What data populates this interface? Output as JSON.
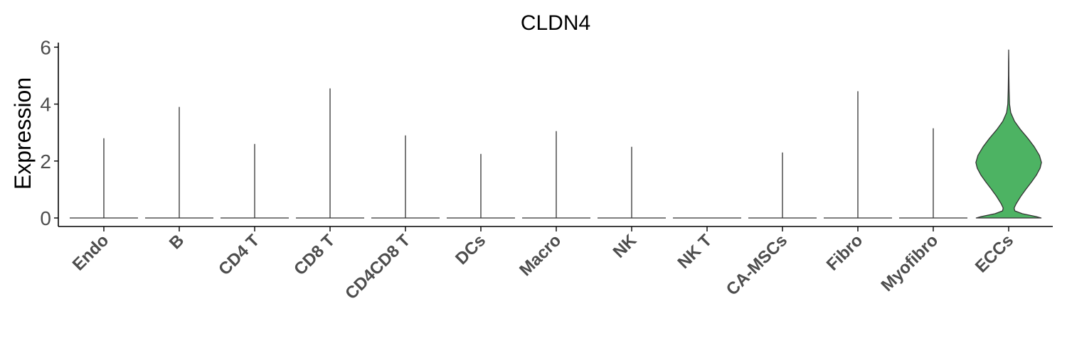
{
  "chart_data": {
    "type": "violin",
    "title": "CLDN4",
    "ylabel": "Expression",
    "xlabel": "",
    "ylim": [
      -0.3,
      6.1
    ],
    "yticks": [
      0,
      2,
      4,
      6
    ],
    "categories": [
      "Endo",
      "B",
      "CD4 T",
      "CD8 T",
      "CD4CD8 T",
      "DCs",
      "Macro",
      "NK",
      "NK T",
      "CA-MSCs",
      "Fibro",
      "Myofibro",
      "ECCs"
    ],
    "max_values": [
      2.8,
      3.9,
      2.6,
      4.55,
      2.9,
      2.25,
      3.05,
      2.5,
      0.0,
      2.3,
      4.45,
      3.15,
      5.9
    ],
    "fill_color": "#4DB363",
    "violins": [
      {
        "name": "Endo",
        "max": 2.8,
        "profile": "spike"
      },
      {
        "name": "B",
        "max": 3.9,
        "profile": "spike"
      },
      {
        "name": "CD4 T",
        "max": 2.6,
        "profile": "spike"
      },
      {
        "name": "CD8 T",
        "max": 4.55,
        "profile": "spike"
      },
      {
        "name": "CD4CD8 T",
        "max": 2.9,
        "profile": "spike"
      },
      {
        "name": "DCs",
        "max": 2.25,
        "profile": "spike"
      },
      {
        "name": "Macro",
        "max": 3.05,
        "profile": "spike"
      },
      {
        "name": "NK",
        "max": 2.5,
        "profile": "spike"
      },
      {
        "name": "NK T",
        "max": 0.0,
        "profile": "spike"
      },
      {
        "name": "CA-MSCs",
        "max": 2.3,
        "profile": "spike"
      },
      {
        "name": "Fibro",
        "max": 4.45,
        "profile": "spike"
      },
      {
        "name": "Myofibro",
        "max": 3.15,
        "profile": "spike"
      },
      {
        "name": "ECCs",
        "max": 5.9,
        "profile": "distribution",
        "density": [
          [
            0.0,
            0.95
          ],
          [
            0.05,
            0.8
          ],
          [
            0.15,
            0.4
          ],
          [
            0.25,
            0.18
          ],
          [
            0.35,
            0.16
          ],
          [
            0.5,
            0.22
          ],
          [
            0.75,
            0.35
          ],
          [
            1.0,
            0.5
          ],
          [
            1.25,
            0.66
          ],
          [
            1.5,
            0.81
          ],
          [
            1.75,
            0.92
          ],
          [
            1.95,
            0.96
          ],
          [
            2.2,
            0.9
          ],
          [
            2.5,
            0.75
          ],
          [
            2.8,
            0.56
          ],
          [
            3.1,
            0.35
          ],
          [
            3.4,
            0.17
          ],
          [
            3.7,
            0.06
          ],
          [
            4.0,
            0.025
          ],
          [
            4.5,
            0.012
          ],
          [
            5.0,
            0.007
          ],
          [
            5.5,
            0.004
          ],
          [
            5.9,
            0.0
          ]
        ]
      }
    ]
  }
}
